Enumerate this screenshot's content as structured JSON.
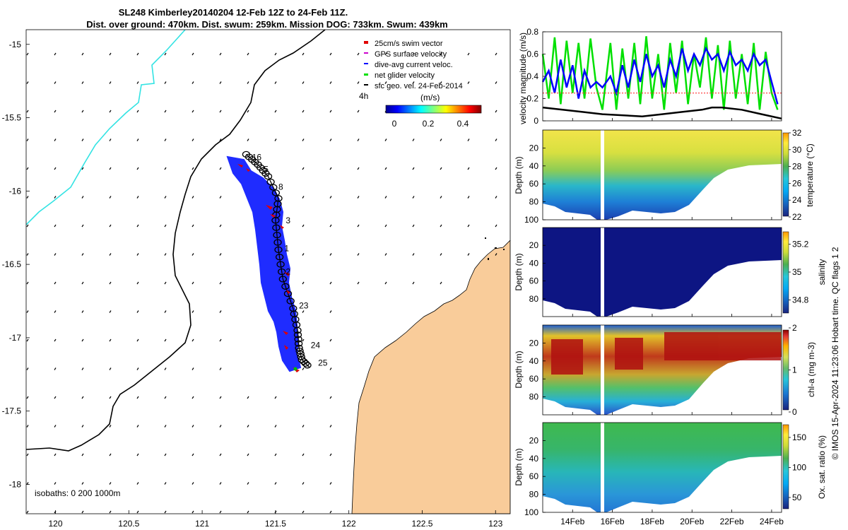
{
  "title": {
    "line1": "SL248 Kimberley20140204 12-Feb 12Z to 24-Feb 11Z.",
    "line2": "Dist. over ground: 470km. Dist. swum: 259km. Mission DOG: 733km. Swum: 439km"
  },
  "colors": {
    "land": "#f9cc9a",
    "track_fill": "#1f2cff",
    "swim_vector": "#e00000",
    "gps_vel": "#cc00cc",
    "dac": "#0000ff",
    "net_vel": "#00e000",
    "coast_line": "#000000",
    "isobath_cyan": "#33e3e3"
  },
  "chart_data": [
    {
      "id": "map",
      "type": "scatter",
      "xlabel": "",
      "ylabel": "",
      "xlim": [
        119.8,
        123.1
      ],
      "ylim": [
        -18.2,
        -14.9
      ],
      "x_ticks": [
        "120",
        "120.5",
        "121",
        "121.5",
        "122",
        "122.5",
        "123"
      ],
      "y_ticks": [
        "-15",
        "-15.5",
        "-16",
        "-16.5",
        "-17",
        "-17.5",
        "-18"
      ],
      "legend": {
        "placement": "top-right",
        "entries": [
          "25cm/s swim vector",
          "GPS surface velocity",
          "dive-avg current veloc.",
          "net glider velocity",
          "sfc geo. vel. 24-Feb-2014"
        ]
      },
      "colorbar": {
        "title": "(m/s)",
        "side_label": "4h",
        "ticks": [
          "0",
          "0.2",
          "0.4"
        ],
        "range": [
          0,
          0.5
        ]
      },
      "isobaths_label": "isobaths: 0   200  1000m",
      "track": [
        [
          121.3,
          -15.75
        ],
        [
          121.38,
          -15.82
        ],
        [
          121.45,
          -15.9
        ],
        [
          121.52,
          -16.05
        ],
        [
          121.5,
          -16.2
        ],
        [
          121.52,
          -16.4
        ],
        [
          121.55,
          -16.6
        ],
        [
          121.62,
          -16.8
        ],
        [
          121.65,
          -16.95
        ],
        [
          121.66,
          -17.07
        ],
        [
          121.68,
          -17.15
        ],
        [
          121.73,
          -17.2
        ]
      ],
      "day_labels": [
        {
          "text": "16",
          "lon": 121.34,
          "lat": -15.79
        },
        {
          "text": "5",
          "lon": 121.42,
          "lat": -15.87
        },
        {
          "text": "8",
          "lon": 121.52,
          "lat": -15.99
        },
        {
          "text": "3",
          "lon": 121.57,
          "lat": -16.22
        },
        {
          "text": "1",
          "lon": 121.56,
          "lat": -16.41
        },
        {
          "text": "2",
          "lon": 121.57,
          "lat": -16.57
        },
        {
          "text": "23",
          "lon": 121.66,
          "lat": -16.8
        },
        {
          "text": "24",
          "lon": 121.74,
          "lat": -17.07
        },
        {
          "text": "25",
          "lon": 121.79,
          "lat": -17.19
        }
      ]
    },
    {
      "id": "velocity",
      "type": "line",
      "title": "",
      "xlabel": "",
      "ylabel": "velocity magnitude (m/s)",
      "xlim": [
        12.5,
        24.5
      ],
      "ylim": [
        0,
        0.8
      ],
      "y_ticks": [
        "0",
        "0.2",
        "0.4",
        "0.6",
        "0.8"
      ],
      "series": [
        {
          "name": "net glider velocity",
          "color": "#00e000",
          "x": [
            12.5,
            12.8,
            13.1,
            13.4,
            13.7,
            14.0,
            14.3,
            14.6,
            14.9,
            15.2,
            15.5,
            15.9,
            16.2,
            16.5,
            16.8,
            17.1,
            17.4,
            17.7,
            18.0,
            18.3,
            18.6,
            18.9,
            19.2,
            19.5,
            19.8,
            20.1,
            20.4,
            20.7,
            21.0,
            21.3,
            21.6,
            21.9,
            22.2,
            22.5,
            22.8,
            23.1,
            23.4,
            23.7,
            24.0,
            24.3
          ],
          "values": [
            0.6,
            0.2,
            0.75,
            0.15,
            0.72,
            0.25,
            0.7,
            0.2,
            0.74,
            0.3,
            0.1,
            0.7,
            0.1,
            0.65,
            0.2,
            0.7,
            0.15,
            0.76,
            0.2,
            0.6,
            0.1,
            0.7,
            0.25,
            0.72,
            0.15,
            0.6,
            0.3,
            0.75,
            0.2,
            0.68,
            0.1,
            0.72,
            0.2,
            0.6,
            0.15,
            0.7,
            0.1,
            0.62,
            0.25,
            0.1
          ]
        },
        {
          "name": "dive-avg current veloc.",
          "color": "#0000ff",
          "x": [
            12.5,
            12.8,
            13.1,
            13.4,
            13.7,
            14.0,
            14.3,
            14.6,
            14.9,
            15.2,
            15.5,
            15.9,
            16.2,
            16.5,
            16.8,
            17.1,
            17.4,
            17.7,
            18.0,
            18.3,
            18.6,
            18.9,
            19.2,
            19.5,
            19.8,
            20.1,
            20.4,
            20.7,
            21.0,
            21.3,
            21.6,
            21.9,
            22.2,
            22.5,
            22.8,
            23.1,
            23.4,
            23.7,
            24.0,
            24.3
          ],
          "values": [
            0.35,
            0.45,
            0.25,
            0.55,
            0.3,
            0.5,
            0.2,
            0.45,
            0.3,
            0.35,
            0.3,
            0.4,
            0.25,
            0.5,
            0.3,
            0.55,
            0.35,
            0.6,
            0.4,
            0.5,
            0.3,
            0.55,
            0.4,
            0.65,
            0.45,
            0.6,
            0.5,
            0.65,
            0.55,
            0.6,
            0.45,
            0.62,
            0.5,
            0.55,
            0.45,
            0.6,
            0.5,
            0.55,
            0.35,
            0.15
          ]
        },
        {
          "name": "swim speed",
          "color": "#ff4444",
          "x": [
            12.5,
            24.5
          ],
          "values": [
            0.25,
            0.25
          ]
        },
        {
          "name": "sfc geo. vel.",
          "color": "#000000",
          "x": [
            12.5,
            13.5,
            14.5,
            15.5,
            16.5,
            17.5,
            18.5,
            19.5,
            20.5,
            21.0,
            21.5,
            22.5,
            23.5,
            24.5
          ],
          "values": [
            0.12,
            0.1,
            0.08,
            0.06,
            0.05,
            0.04,
            0.06,
            0.08,
            0.1,
            0.12,
            0.12,
            0.1,
            0.06,
            0.02
          ]
        }
      ]
    },
    {
      "id": "temperature",
      "type": "heatmap",
      "xlabel": "",
      "ylabel": "Depth (m)",
      "colorbar_label": "temperature (°C)",
      "xlim": [
        12.5,
        24.5
      ],
      "ylim": [
        100,
        0
      ],
      "y_ticks": [
        "20",
        "40",
        "60",
        "80",
        "100"
      ],
      "cbar_ticks": [
        "22",
        "24",
        "26",
        "28",
        "30",
        "32"
      ],
      "cbar_range": [
        22,
        32
      ]
    },
    {
      "id": "salinity",
      "type": "heatmap",
      "xlabel": "",
      "ylabel": "Depth (m)",
      "colorbar_label": "salinity",
      "xlim": [
        12.5,
        24.5
      ],
      "ylim": [
        100,
        0
      ],
      "y_ticks": [
        "20",
        "40",
        "60",
        "80"
      ],
      "cbar_ticks": [
        "34.8",
        "35",
        "35.2"
      ],
      "cbar_range": [
        34.7,
        35.3
      ]
    },
    {
      "id": "chla",
      "type": "heatmap",
      "xlabel": "",
      "ylabel": "Depth (m)",
      "colorbar_label": "chl-a (mg m-3)",
      "xlim": [
        12.5,
        24.5
      ],
      "ylim": [
        100,
        0
      ],
      "y_ticks": [
        "20",
        "40",
        "60",
        "80"
      ],
      "cbar_ticks": [
        "0",
        "1",
        "2"
      ],
      "cbar_range": [
        0,
        2
      ]
    },
    {
      "id": "oxygen",
      "type": "heatmap",
      "xlabel": "",
      "ylabel": "Depth (m)",
      "colorbar_label": "Ox. sat. ratio (%)",
      "xlim": [
        12.5,
        24.5
      ],
      "ylim": [
        100,
        0
      ],
      "y_ticks": [
        "20",
        "40",
        "60",
        "80",
        "100"
      ],
      "x_ticks": [
        "14Feb",
        "16Feb",
        "18Feb",
        "20Feb",
        "22Feb",
        "24Feb"
      ],
      "cbar_ticks": [
        "50",
        "100",
        "150"
      ],
      "cbar_range": [
        30,
        170
      ]
    }
  ],
  "side_note": "© IMOS 15-Apr-2024 11:23:06 Hobart time. QC flags 1  2"
}
